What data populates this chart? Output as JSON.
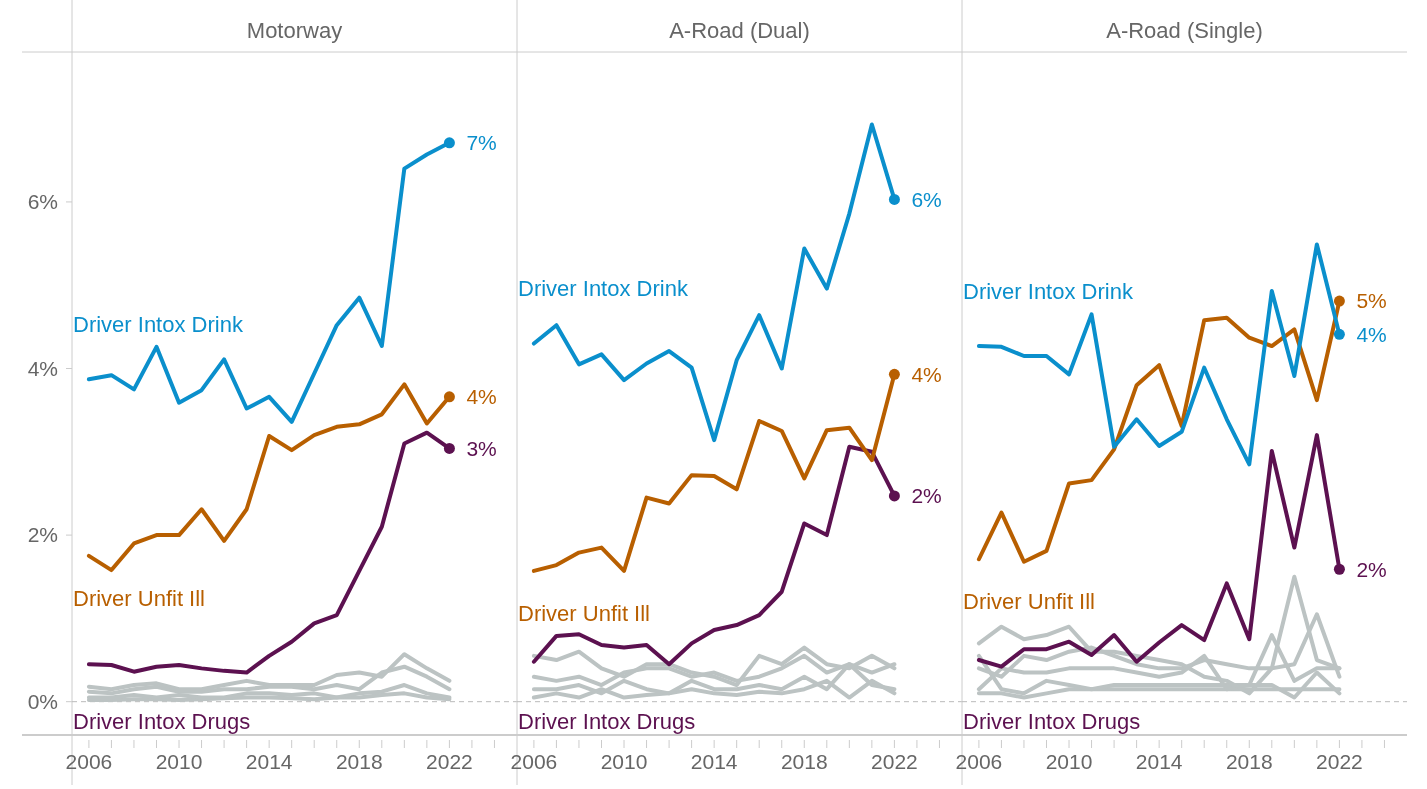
{
  "chart_data": [
    {
      "type": "line",
      "title": "Motorway",
      "x": [
        2006,
        2007,
        2008,
        2009,
        2010,
        2011,
        2012,
        2013,
        2014,
        2015,
        2016,
        2017,
        2018,
        2019,
        2020,
        2021,
        2022
      ],
      "xlim": [
        2005.25,
        2025
      ],
      "xticks": [
        2006,
        {
          "value": 2007,
          "label": null
        },
        {
          "value": 2008,
          "label": null
        },
        {
          "value": 2009,
          "label": null
        },
        2010,
        {
          "value": 2011,
          "label": null
        },
        {
          "value": 2012,
          "label": null
        },
        {
          "value": 2013,
          "label": null
        },
        2014,
        {
          "value": 2015,
          "label": null
        },
        {
          "value": 2016,
          "label": null
        },
        {
          "value": 2017,
          "label": null
        },
        2018,
        {
          "value": 2019,
          "label": null
        },
        {
          "value": 2020,
          "label": null
        },
        {
          "value": 2021,
          "label": null
        },
        2022,
        {
          "value": 2023,
          "label": null
        },
        {
          "value": 2024,
          "label": null
        }
      ],
      "ylim": [
        -0.4,
        7.8
      ],
      "yticks": [
        {
          "value": 0,
          "label": "0%"
        },
        {
          "value": 2,
          "label": "2%"
        },
        {
          "value": 4,
          "label": "4%"
        },
        {
          "value": 6,
          "label": "6%"
        }
      ],
      "grid": false,
      "marker": "none",
      "line_style": "solid",
      "ref_lines": [
        {
          "axis": "y",
          "value": 0,
          "color": "#bbbbbb",
          "line_style": "dashed"
        }
      ],
      "series": [
        {
          "name": "Driver Intox Drink",
          "color": "#0a8fcc",
          "values": [
            3.87,
            3.92,
            3.75,
            4.26,
            3.59,
            3.74,
            4.11,
            3.52,
            3.66,
            3.36,
            3.94,
            4.52,
            4.85,
            4.27,
            6.4,
            6.57,
            6.71
          ],
          "value_labels": [
            null,
            null,
            null,
            null,
            null,
            null,
            null,
            null,
            null,
            null,
            null,
            null,
            null,
            null,
            null,
            null,
            "7%"
          ]
        },
        {
          "name": "Driver Unfit Ill",
          "color": "#b85f00",
          "values": [
            1.75,
            1.58,
            1.9,
            2.0,
            2.0,
            2.31,
            1.93,
            2.31,
            3.19,
            3.02,
            3.2,
            3.3,
            3.33,
            3.45,
            3.81,
            3.34,
            3.66
          ],
          "value_labels": [
            null,
            null,
            null,
            null,
            null,
            null,
            null,
            null,
            null,
            null,
            null,
            null,
            null,
            null,
            null,
            null,
            "4%"
          ]
        },
        {
          "name": "Driver Intox Drugs",
          "color": "#5c1150",
          "values": [
            0.45,
            0.44,
            0.36,
            0.42,
            0.44,
            0.4,
            0.37,
            0.35,
            0.55,
            0.72,
            0.94,
            1.04,
            1.57,
            2.1,
            3.1,
            3.23,
            3.04
          ],
          "value_labels": [
            null,
            null,
            null,
            null,
            null,
            null,
            null,
            null,
            null,
            null,
            null,
            null,
            null,
            null,
            null,
            null,
            "3%"
          ]
        },
        {
          "color": "#bcc3c3",
          "values": [
            0.18,
            0.15,
            0.2,
            0.22,
            0.15,
            0.15,
            0.2,
            0.25,
            0.2,
            0.2,
            0.2,
            0.32,
            0.35,
            0.3,
            0.57,
            0.4,
            0.25
          ]
        },
        {
          "color": "#bcc3c3",
          "values": [
            0.12,
            0.1,
            0.15,
            0.18,
            0.12,
            0.12,
            0.15,
            0.15,
            0.18,
            0.18,
            0.15,
            0.2,
            0.15,
            0.35,
            0.42,
            0.3,
            0.15
          ]
        },
        {
          "color": "#bcc3c3",
          "values": [
            0.05,
            0.05,
            0.08,
            0.05,
            0.08,
            0.05,
            0.05,
            0.1,
            0.1,
            0.08,
            0.1,
            0.05,
            0.1,
            0.12,
            0.2,
            0.1,
            0.05
          ]
        },
        {
          "color": "#bcc3c3",
          "values": [
            0.02,
            0.02,
            0.03,
            0.03,
            0.02,
            0.03,
            0.04,
            0.05,
            0.05,
            0.04,
            0.03,
            0.05,
            0.05,
            0.08,
            0.1,
            0.05,
            0.03
          ]
        }
      ]
    },
    {
      "type": "line",
      "title": "A-Road (Dual)",
      "x": [
        2006,
        2007,
        2008,
        2009,
        2010,
        2011,
        2012,
        2013,
        2014,
        2015,
        2016,
        2017,
        2018,
        2019,
        2020,
        2021,
        2022
      ],
      "xlim": [
        2005.25,
        2025
      ],
      "xticks": [
        2006,
        {
          "value": 2007,
          "label": null
        },
        {
          "value": 2008,
          "label": null
        },
        {
          "value": 2009,
          "label": null
        },
        2010,
        {
          "value": 2011,
          "label": null
        },
        {
          "value": 2012,
          "label": null
        },
        {
          "value": 2013,
          "label": null
        },
        2014,
        {
          "value": 2015,
          "label": null
        },
        {
          "value": 2016,
          "label": null
        },
        {
          "value": 2017,
          "label": null
        },
        2018,
        {
          "value": 2019,
          "label": null
        },
        {
          "value": 2020,
          "label": null
        },
        {
          "value": 2021,
          "label": null
        },
        2022,
        {
          "value": 2023,
          "label": null
        },
        {
          "value": 2024,
          "label": null
        }
      ],
      "ylim": [
        -0.4,
        7.8
      ],
      "tick_labels": "x",
      "grid": false,
      "marker": "none",
      "line_style": "solid",
      "ref_lines": [
        {
          "axis": "y",
          "value": 0,
          "color": "#bbbbbb",
          "line_style": "dashed"
        }
      ],
      "series": [
        {
          "name": "Driver Intox Drink",
          "color": "#0a8fcc",
          "values": [
            4.3,
            4.52,
            4.05,
            4.17,
            3.86,
            4.06,
            4.21,
            4.01,
            3.14,
            4.1,
            4.64,
            4.0,
            5.44,
            4.96,
            5.86,
            6.93,
            6.03
          ],
          "value_labels": [
            null,
            null,
            null,
            null,
            null,
            null,
            null,
            null,
            null,
            null,
            null,
            null,
            null,
            null,
            null,
            null,
            "6%"
          ]
        },
        {
          "name": "Driver Unfit Ill",
          "color": "#b85f00",
          "values": [
            1.57,
            1.64,
            1.79,
            1.85,
            1.57,
            2.45,
            2.38,
            2.72,
            2.71,
            2.55,
            3.37,
            3.25,
            2.68,
            3.26,
            3.29,
            2.9,
            3.93
          ],
          "value_labels": [
            null,
            null,
            null,
            null,
            null,
            null,
            null,
            null,
            null,
            null,
            null,
            null,
            null,
            null,
            null,
            null,
            "4%"
          ]
        },
        {
          "name": "Driver Intox Drugs",
          "color": "#5c1150",
          "values": [
            0.48,
            0.79,
            0.81,
            0.68,
            0.65,
            0.68,
            0.45,
            0.7,
            0.86,
            0.92,
            1.04,
            1.32,
            2.14,
            2.0,
            3.06,
            3.0,
            2.47
          ],
          "value_labels": [
            null,
            null,
            null,
            null,
            null,
            null,
            null,
            null,
            null,
            null,
            null,
            null,
            null,
            null,
            null,
            null,
            "2%"
          ]
        },
        {
          "color": "#bcc3c3",
          "values": [
            0.55,
            0.5,
            0.6,
            0.4,
            0.3,
            0.45,
            0.45,
            0.35,
            0.3,
            0.2,
            0.55,
            0.45,
            0.65,
            0.45,
            0.4,
            0.55,
            0.4
          ]
        },
        {
          "color": "#bcc3c3",
          "values": [
            0.3,
            0.25,
            0.3,
            0.2,
            0.35,
            0.4,
            0.4,
            0.3,
            0.35,
            0.25,
            0.3,
            0.4,
            0.55,
            0.35,
            0.45,
            0.35,
            0.45
          ]
        },
        {
          "color": "#bcc3c3",
          "values": [
            0.15,
            0.15,
            0.2,
            0.1,
            0.25,
            0.15,
            0.1,
            0.25,
            0.15,
            0.15,
            0.2,
            0.15,
            0.3,
            0.15,
            0.45,
            0.2,
            0.15
          ]
        },
        {
          "color": "#bcc3c3",
          "values": [
            0.05,
            0.1,
            0.05,
            0.15,
            0.05,
            0.08,
            0.1,
            0.15,
            0.1,
            0.08,
            0.12,
            0.1,
            0.15,
            0.25,
            0.05,
            0.25,
            0.1
          ]
        }
      ]
    },
    {
      "type": "line",
      "title": "A-Road (Single)",
      "x": [
        2006,
        2007,
        2008,
        2009,
        2010,
        2011,
        2012,
        2013,
        2014,
        2015,
        2016,
        2017,
        2018,
        2019,
        2020,
        2021,
        2022
      ],
      "xlim": [
        2005.25,
        2025
      ],
      "xticks": [
        2006,
        {
          "value": 2007,
          "label": null
        },
        {
          "value": 2008,
          "label": null
        },
        {
          "value": 2009,
          "label": null
        },
        2010,
        {
          "value": 2011,
          "label": null
        },
        {
          "value": 2012,
          "label": null
        },
        {
          "value": 2013,
          "label": null
        },
        2014,
        {
          "value": 2015,
          "label": null
        },
        {
          "value": 2016,
          "label": null
        },
        {
          "value": 2017,
          "label": null
        },
        2018,
        {
          "value": 2019,
          "label": null
        },
        {
          "value": 2020,
          "label": null
        },
        {
          "value": 2021,
          "label": null
        },
        2022,
        {
          "value": 2023,
          "label": null
        },
        {
          "value": 2024,
          "label": null
        }
      ],
      "ylim": [
        -0.4,
        7.8
      ],
      "tick_labels": "x",
      "grid": false,
      "marker": "none",
      "line_style": "solid",
      "ref_lines": [
        {
          "axis": "y",
          "value": 0,
          "color": "#bbbbbb",
          "line_style": "dashed"
        }
      ],
      "series": [
        {
          "name": "Driver Intox Drink",
          "color": "#0a8fcc",
          "values": [
            4.27,
            4.26,
            4.15,
            4.15,
            3.93,
            4.65,
            3.06,
            3.39,
            3.07,
            3.24,
            4.01,
            3.39,
            2.85,
            4.93,
            3.91,
            5.49,
            4.41
          ],
          "value_labels": [
            null,
            null,
            null,
            null,
            null,
            null,
            null,
            null,
            null,
            null,
            null,
            null,
            null,
            null,
            null,
            null,
            "4%"
          ]
        },
        {
          "name": "Driver Unfit Ill",
          "color": "#b85f00",
          "values": [
            1.71,
            2.27,
            1.68,
            1.81,
            2.62,
            2.66,
            3.03,
            3.8,
            4.04,
            3.31,
            4.58,
            4.61,
            4.37,
            4.27,
            4.47,
            3.62,
            4.81
          ],
          "value_labels": [
            null,
            null,
            null,
            null,
            null,
            null,
            null,
            null,
            null,
            null,
            null,
            null,
            null,
            null,
            null,
            null,
            "5%"
          ]
        },
        {
          "name": "Driver Intox Drugs",
          "color": "#5c1150",
          "values": [
            0.5,
            0.42,
            0.63,
            0.63,
            0.72,
            0.56,
            0.8,
            0.48,
            0.71,
            0.92,
            0.74,
            1.42,
            0.75,
            3.01,
            1.85,
            3.2,
            1.59
          ],
          "value_labels": [
            null,
            null,
            null,
            null,
            null,
            null,
            null,
            null,
            null,
            null,
            null,
            null,
            null,
            null,
            null,
            null,
            "2%"
          ]
        },
        {
          "color": "#bcc3c3",
          "values": [
            0.7,
            0.9,
            0.75,
            0.8,
            0.9,
            0.6,
            0.6,
            0.55,
            0.5,
            0.45,
            0.3,
            0.25,
            0.1,
            0.4,
            1.5,
            0.5,
            0.4
          ]
        },
        {
          "color": "#bcc3c3",
          "values": [
            0.4,
            0.3,
            0.55,
            0.5,
            0.6,
            0.65,
            0.55,
            0.45,
            0.4,
            0.4,
            0.5,
            0.45,
            0.4,
            0.4,
            0.45,
            1.05,
            0.3
          ]
        },
        {
          "color": "#bcc3c3",
          "values": [
            0.15,
            0.4,
            0.35,
            0.35,
            0.4,
            0.4,
            0.4,
            0.35,
            0.3,
            0.35,
            0.55,
            0.15,
            0.2,
            0.8,
            0.25,
            0.4,
            0.4
          ]
        },
        {
          "color": "#bcc3c3",
          "values": [
            0.55,
            0.15,
            0.1,
            0.25,
            0.2,
            0.15,
            0.2,
            0.2,
            0.2,
            0.2,
            0.2,
            0.2,
            0.2,
            0.2,
            0.05,
            0.35,
            0.1
          ]
        },
        {
          "color": "#bcc3c3",
          "values": [
            0.1,
            0.1,
            0.05,
            0.1,
            0.15,
            0.15,
            0.15,
            0.15,
            0.15,
            0.15,
            0.15,
            0.15,
            0.15,
            0.15,
            0.15,
            0.15,
            0.15
          ]
        }
      ]
    }
  ]
}
